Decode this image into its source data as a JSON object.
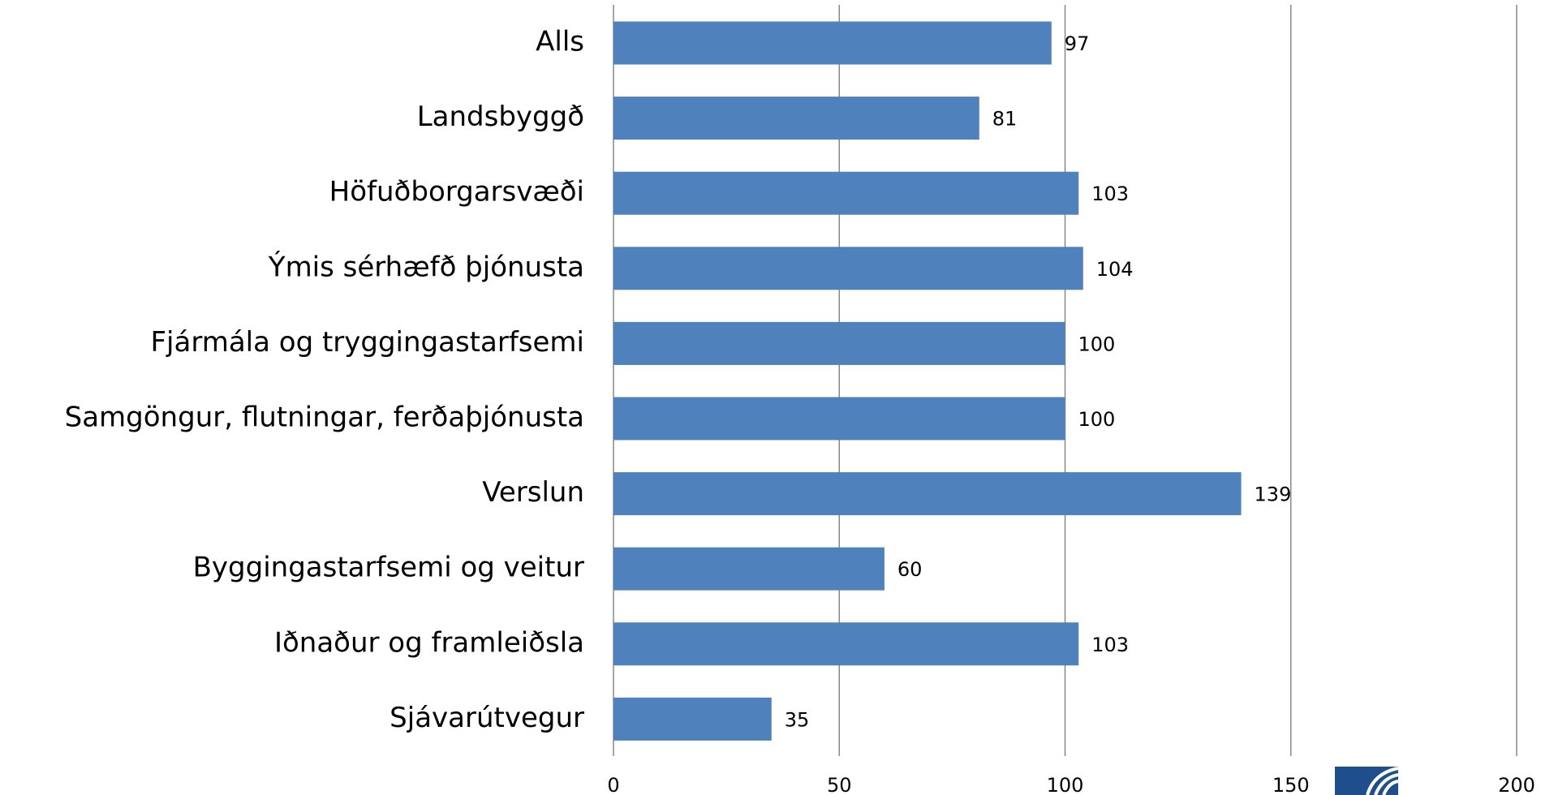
{
  "chart_data": {
    "type": "bar",
    "orientation": "horizontal",
    "categories": [
      "Alls",
      "Landsbyggð",
      "Höfuðborgarsvæði",
      "Ýmis sérhæfð þjónusta",
      "Fjármála og tryggingastarfsemi",
      "Samgöngur, flutningar, ferðaþjónusta",
      "Verslun",
      "Byggingastarfsemi og veitur",
      "Iðnaður og framleiðsla",
      "Sjávarútvegur"
    ],
    "values": [
      97,
      81,
      103,
      104,
      100,
      100,
      139,
      60,
      103,
      35
    ],
    "color": "#4f81bd",
    "xlim": [
      0,
      200
    ],
    "xticks": [
      0,
      50,
      100,
      150,
      200
    ],
    "grid": true
  }
}
